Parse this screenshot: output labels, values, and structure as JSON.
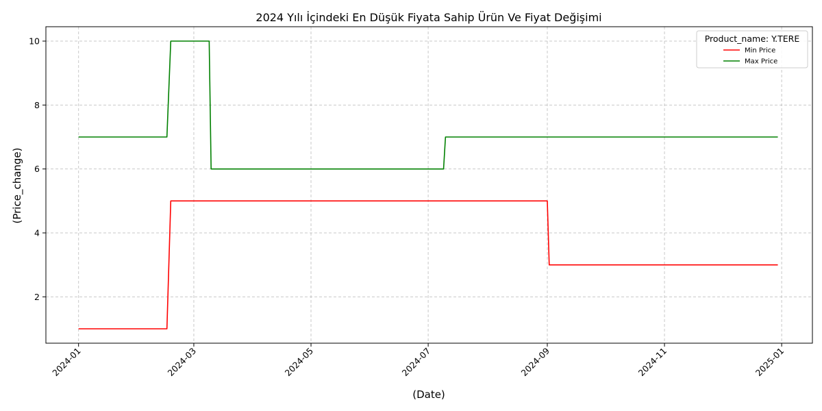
{
  "chart_data": {
    "type": "line",
    "title": "2024 Yılı İçindeki En Düşük Fiyata Sahip Ürün Ve Fiyat Değişimi",
    "xlabel": "(Date)",
    "ylabel": "(Price_change)",
    "x_ticks": [
      "2024-01",
      "2024-03",
      "2024-05",
      "2024-07",
      "2024-09",
      "2024-11",
      "2025-01"
    ],
    "y_ticks": [
      "2",
      "4",
      "6",
      "8",
      "10"
    ],
    "xlim": [
      "2023-12-15",
      "2025-01-17"
    ],
    "ylim": [
      0.55,
      10.45
    ],
    "grid": true,
    "legend": {
      "title": "Product_name: Y.TERE",
      "placement": "top-right"
    },
    "series": [
      {
        "name": "Min Price",
        "color": "#ff0000",
        "x": [
          "2024-01-01",
          "2024-02-16",
          "2024-02-18",
          "2024-09-01",
          "2024-09-02",
          "2024-12-30"
        ],
        "y": [
          1,
          1,
          5,
          5,
          3,
          3
        ]
      },
      {
        "name": "Max Price",
        "color": "#008000",
        "x": [
          "2024-01-01",
          "2024-02-16",
          "2024-02-18",
          "2024-03-09",
          "2024-03-10",
          "2024-07-09",
          "2024-07-10",
          "2024-12-30"
        ],
        "y": [
          7,
          7,
          10,
          10,
          6,
          6,
          7,
          7
        ]
      }
    ]
  }
}
